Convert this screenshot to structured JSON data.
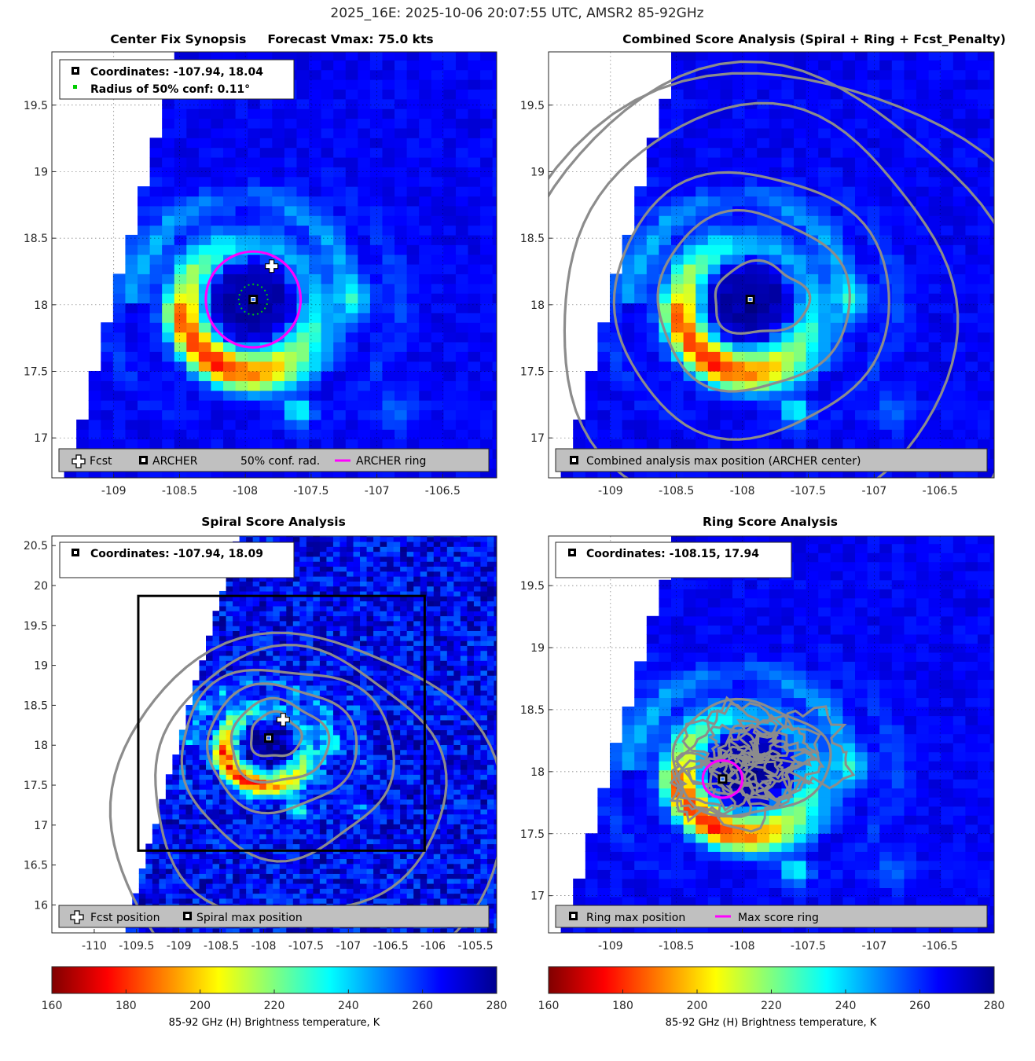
{
  "figure_title": "2025_16E: 2025-10-06 20:07:55 UTC, AMSR2 85-92GHz",
  "chart_data": [
    {
      "type": "heatmap",
      "id": "synopsis",
      "title": "Center Fix Synopsis     Forecast Vmax: 75.0 kts",
      "xlim": [
        -109.47,
        -106.09
      ],
      "ylim": [
        16.7,
        19.9
      ],
      "xticks": [
        -109,
        -108.5,
        -108,
        -107.5,
        -107,
        -106.5
      ],
      "yticks": [
        17,
        17.5,
        18,
        18.5,
        19,
        19.5
      ],
      "info_lines": [
        "Coordinates: -107.94, 18.04",
        "Radius of 50% conf: 0.11°"
      ],
      "legend": [
        "Fcst",
        "ARCHER",
        "50% conf. rad.",
        "ARCHER ring"
      ],
      "archer_center": [
        -107.94,
        18.04
      ],
      "forecast_position": [
        -107.8,
        18.29
      ],
      "ring_radius_deg": 0.36,
      "conf_radius_deg": 0.11
    },
    {
      "type": "heatmap",
      "id": "combined",
      "title": "Combined Score Analysis (Spiral + Ring + Fcst_Penalty)",
      "xlim": [
        -109.47,
        -106.09
      ],
      "ylim": [
        16.7,
        19.9
      ],
      "xticks": [
        -109,
        -108.5,
        -108,
        -107.5,
        -107,
        -106.5
      ],
      "yticks": [
        17,
        17.5,
        18,
        18.5,
        19,
        19.5
      ],
      "legend": [
        "Combined analysis max position (ARCHER center)"
      ],
      "max_position": [
        -107.94,
        18.04
      ]
    },
    {
      "type": "heatmap",
      "id": "spiral",
      "title": "Spiral Score Analysis",
      "xlim": [
        -110.5,
        -105.25
      ],
      "ylim": [
        15.65,
        20.62
      ],
      "xticks": [
        -110,
        -109.5,
        -109,
        -108.5,
        -108,
        -107.5,
        -107,
        -106.5,
        -106,
        -105.5
      ],
      "yticks": [
        16,
        16.5,
        17,
        17.5,
        18,
        18.5,
        19,
        19.5,
        20,
        20.5
      ],
      "info_lines": [
        "Coordinates: -107.94, 18.09"
      ],
      "legend": [
        "Fcst position",
        "Spiral max position"
      ],
      "max_position": [
        -107.94,
        18.09
      ],
      "forecast_position": [
        -107.77,
        18.32
      ],
      "search_box": [
        -109.48,
        16.68,
        -106.1,
        19.87
      ]
    },
    {
      "type": "heatmap",
      "id": "ring",
      "title": "Ring Score Analysis",
      "xlim": [
        -109.47,
        -106.09
      ],
      "ylim": [
        16.7,
        19.9
      ],
      "xticks": [
        -109,
        -108.5,
        -108,
        -107.5,
        -107,
        -106.5
      ],
      "yticks": [
        17,
        17.5,
        18,
        18.5,
        19,
        19.5
      ],
      "info_lines": [
        "Coordinates: -108.15, 17.94"
      ],
      "legend": [
        "Ring max position",
        "Max score ring"
      ],
      "max_position": [
        -108.15,
        17.94
      ],
      "ring_radius_deg": 0.15
    }
  ],
  "colorbar": {
    "label": "85-92 GHz (H) Brightness temperature, K",
    "min": 160,
    "max": 280,
    "ticks": [
      160,
      180,
      200,
      220,
      240,
      260,
      280
    ]
  },
  "colors": {
    "ring": "#ff00ff",
    "contour": "#8c8c8c",
    "legend_bg": "#c0c0c0",
    "conf_dots": "#00cc00"
  }
}
